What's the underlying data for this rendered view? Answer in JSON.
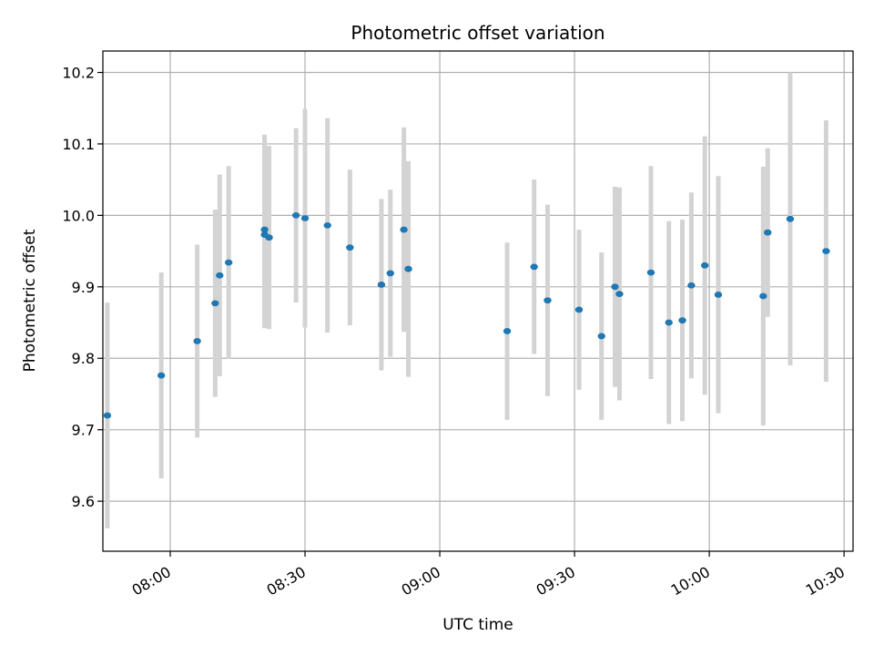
{
  "chart_data": {
    "type": "scatter",
    "title": "Photometric offset variation",
    "xlabel": "UTC time",
    "ylabel": "Photometric offset",
    "x_ticks": [
      "08:00",
      "08:30",
      "09:00",
      "09:30",
      "10:00",
      "10:30"
    ],
    "y_ticks": [
      "9.6",
      "9.7",
      "9.8",
      "9.9",
      "10.0",
      "10.1",
      "10.2"
    ],
    "xlim": [
      "07:45",
      "10:32"
    ],
    "ylim": [
      9.53,
      10.23
    ],
    "grid": true,
    "colors": {
      "point": "#1f77b4",
      "errorbar": "#d3d3d3",
      "grid": "#b0b0b0"
    },
    "points": [
      {
        "t": "07:46",
        "y": 9.72,
        "err": 0.158
      },
      {
        "t": "07:58",
        "y": 9.776,
        "err": 0.144
      },
      {
        "t": "08:06",
        "y": 9.824,
        "err": 0.135
      },
      {
        "t": "08:10",
        "y": 9.877,
        "err": 0.131
      },
      {
        "t": "08:11",
        "y": 9.916,
        "err": 0.141
      },
      {
        "t": "08:13",
        "y": 9.934,
        "err": 0.135
      },
      {
        "t": "08:21",
        "y": 9.98,
        "err": 0.133
      },
      {
        "t": "08:21",
        "y": 9.973,
        "err": 0.131
      },
      {
        "t": "08:22",
        "y": 9.969,
        "err": 0.128
      },
      {
        "t": "08:28",
        "y": 10.0,
        "err": 0.122
      },
      {
        "t": "08:30",
        "y": 9.996,
        "err": 0.153
      },
      {
        "t": "08:35",
        "y": 9.986,
        "err": 0.15
      },
      {
        "t": "08:40",
        "y": 9.955,
        "err": 0.109
      },
      {
        "t": "08:47",
        "y": 9.903,
        "err": 0.12
      },
      {
        "t": "08:49",
        "y": 9.919,
        "err": 0.117
      },
      {
        "t": "08:52",
        "y": 9.98,
        "err": 0.143
      },
      {
        "t": "08:53",
        "y": 9.925,
        "err": 0.151
      },
      {
        "t": "09:15",
        "y": 9.838,
        "err": 0.124
      },
      {
        "t": "09:21",
        "y": 9.928,
        "err": 0.122
      },
      {
        "t": "09:24",
        "y": 9.881,
        "err": 0.134
      },
      {
        "t": "09:31",
        "y": 9.868,
        "err": 0.112
      },
      {
        "t": "09:36",
        "y": 9.831,
        "err": 0.117
      },
      {
        "t": "09:39",
        "y": 9.9,
        "err": 0.14
      },
      {
        "t": "09:40",
        "y": 9.89,
        "err": 0.149
      },
      {
        "t": "09:47",
        "y": 9.92,
        "err": 0.149
      },
      {
        "t": "09:51",
        "y": 9.85,
        "err": 0.142
      },
      {
        "t": "09:54",
        "y": 9.853,
        "err": 0.141
      },
      {
        "t": "09:56",
        "y": 9.902,
        "err": 0.13
      },
      {
        "t": "09:59",
        "y": 9.93,
        "err": 0.181
      },
      {
        "t": "10:02",
        "y": 9.889,
        "err": 0.166
      },
      {
        "t": "10:12",
        "y": 9.887,
        "err": 0.181
      },
      {
        "t": "10:13",
        "y": 9.976,
        "err": 0.118
      },
      {
        "t": "10:18",
        "y": 9.995,
        "err": 0.205
      },
      {
        "t": "10:26",
        "y": 9.95,
        "err": 0.183
      }
    ]
  }
}
